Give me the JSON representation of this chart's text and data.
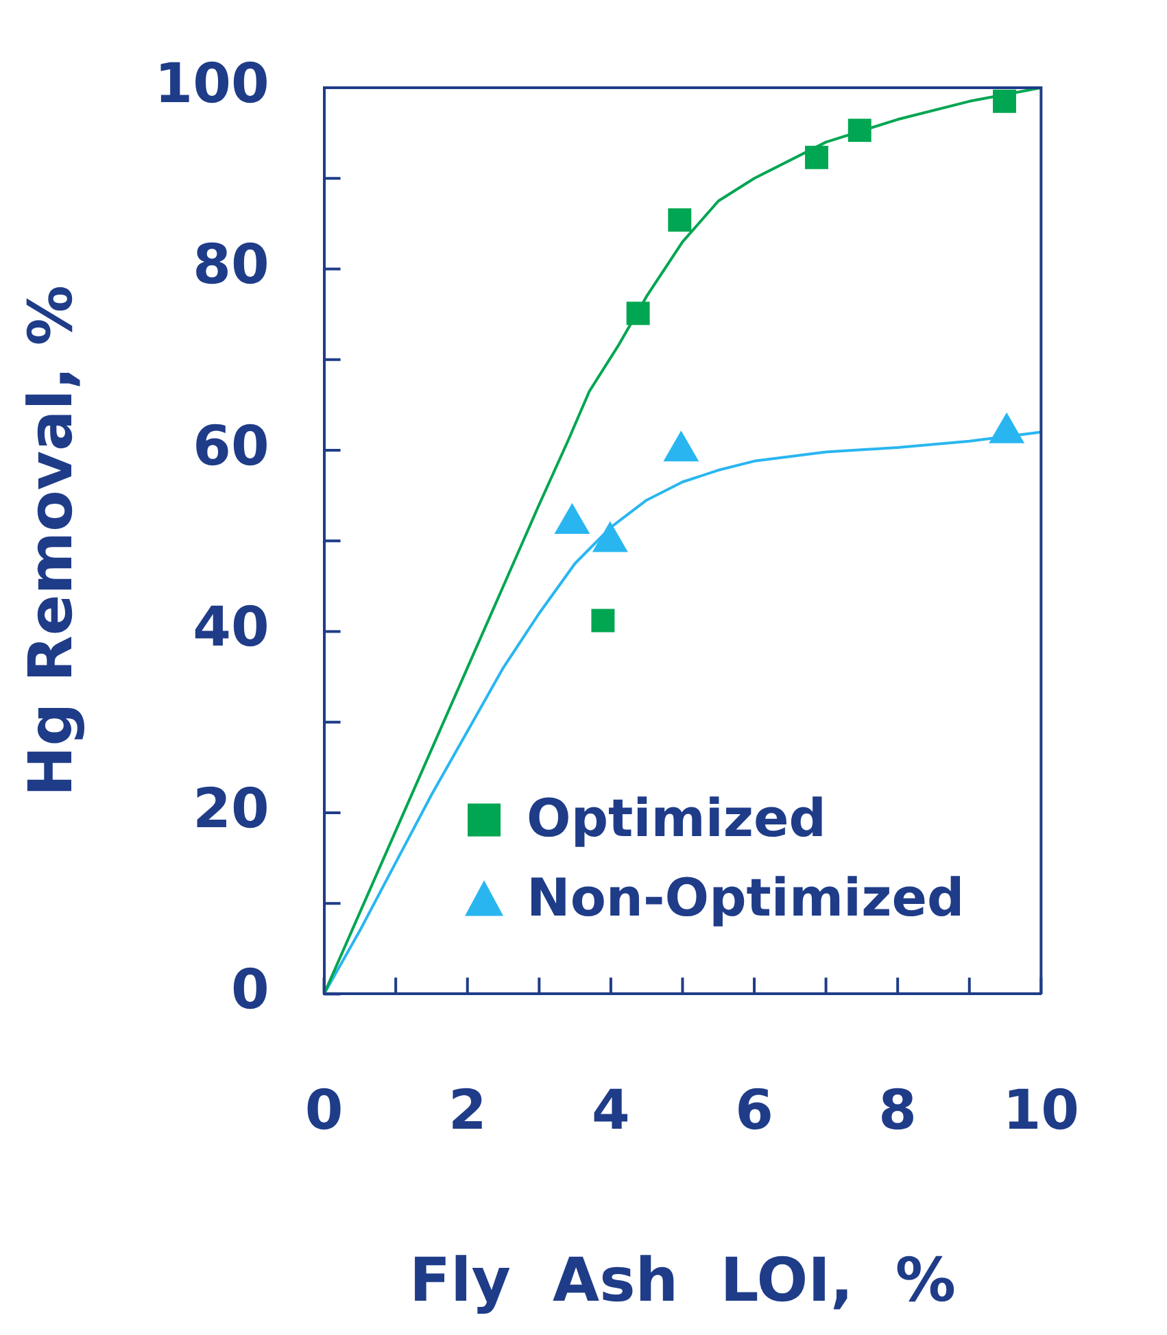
{
  "chart_data": {
    "type": "scatter",
    "xlabel": "Fly  Ash  LOI,  %",
    "ylabel": "Hg Removal, %",
    "xlim": [
      0,
      10
    ],
    "ylim": [
      0,
      100
    ],
    "xticks": [
      0,
      {
        "value": 1,
        "label": null
      },
      2,
      {
        "value": 3,
        "label": null
      },
      4,
      {
        "value": 5,
        "label": null
      },
      6,
      {
        "value": 7,
        "label": null
      },
      8,
      {
        "value": 9,
        "label": null
      },
      10
    ],
    "yticks": [
      0,
      {
        "value": 10,
        "label": null
      },
      20,
      {
        "value": 30,
        "label": null
      },
      40,
      {
        "value": 50,
        "label": null
      },
      60,
      {
        "value": 70,
        "label": null
      },
      80,
      {
        "value": 90,
        "label": null
      },
      100
    ],
    "grid": false,
    "legend": "bottom right",
    "series": [
      {
        "type": "line",
        "color": "#00a651",
        "marker": "none",
        "line_style": "solid",
        "x": [
          0,
          1,
          2,
          3,
          3.4,
          3.7,
          4.1,
          4.5,
          5,
          5.5,
          6,
          7,
          8,
          9,
          10
        ],
        "values": [
          0,
          18,
          36,
          54,
          61,
          66.5,
          71.5,
          77,
          83,
          87.5,
          90,
          94,
          96.5,
          98.5,
          100
        ]
      },
      {
        "type": "line",
        "color": "#29b6f0",
        "marker": "none",
        "line_style": "solid",
        "x": [
          0,
          0.5,
          1,
          1.5,
          2,
          2.5,
          3,
          3.5,
          4,
          4.5,
          5,
          5.5,
          6,
          7,
          8,
          9,
          10
        ],
        "values": [
          0,
          7,
          14.5,
          22,
          29,
          36,
          42,
          47.5,
          51.5,
          54.5,
          56.5,
          57.8,
          58.8,
          59.8,
          60.3,
          61,
          62
        ]
      },
      {
        "type": "scatter",
        "name": "Optimized",
        "color": "#00a651",
        "marker": "square",
        "x": [
          3.89,
          4.38,
          4.96,
          6.87,
          7.47,
          9.49
        ],
        "values": [
          41.2,
          75.1,
          85.4,
          92.3,
          95.3,
          98.5
        ]
      },
      {
        "type": "scatter",
        "name": "Non-Optimized",
        "color": "#29b6f0",
        "marker": "triangle",
        "x": [
          3.46,
          3.99,
          4.98,
          9.52
        ],
        "values": [
          51.9,
          49.9,
          59.9,
          61.9
        ]
      }
    ]
  }
}
